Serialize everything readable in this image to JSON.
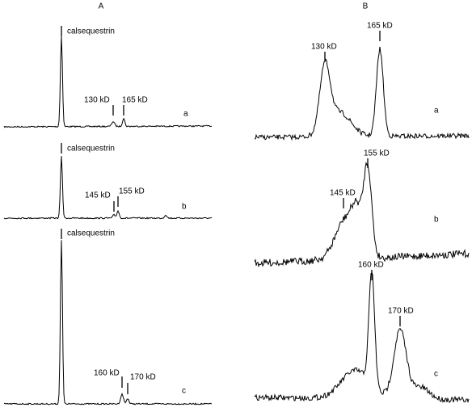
{
  "panels": [
    {
      "label": "A",
      "traces": [
        {
          "label": "a",
          "annotations": [
            "calsequestrin",
            "130 kD",
            "165 kD"
          ]
        },
        {
          "label": "b",
          "annotations": [
            "calsequestrin",
            "145 kD",
            "155 kD"
          ]
        },
        {
          "label": "c",
          "annotations": [
            "calsequestrin",
            "160 kD",
            "170 kD"
          ]
        }
      ]
    },
    {
      "label": "B",
      "traces": [
        {
          "label": "a",
          "annotations": [
            "130 kD",
            "165 kD"
          ]
        },
        {
          "label": "b",
          "annotations": [
            "145 kD",
            "155 kD"
          ]
        },
        {
          "label": "c",
          "annotations": [
            "160 kD",
            "170 kD"
          ]
        }
      ]
    }
  ]
}
